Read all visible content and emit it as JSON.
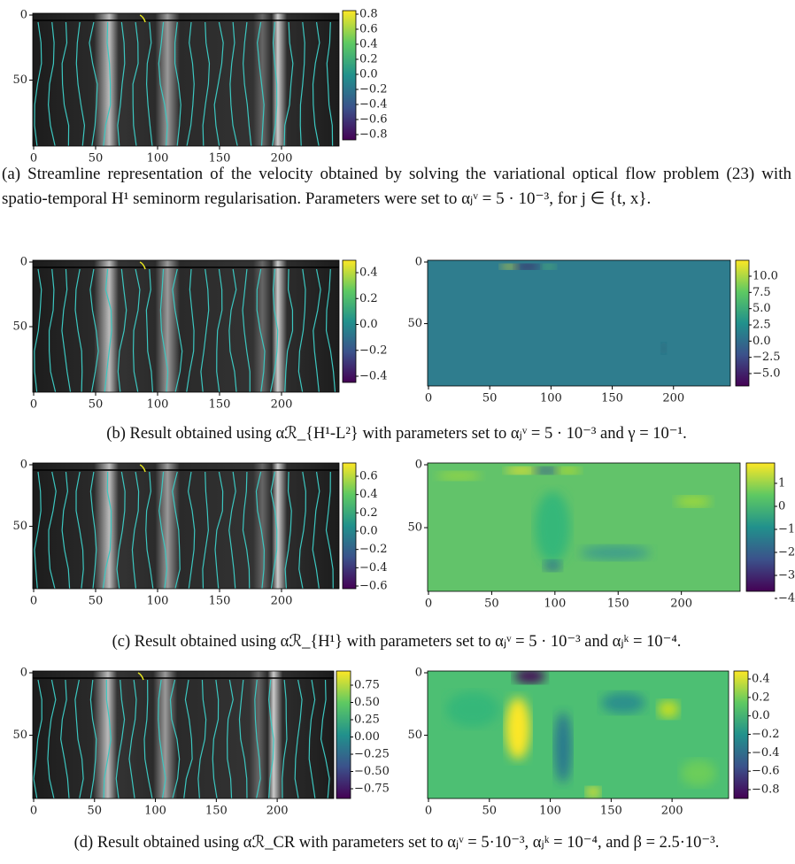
{
  "panels": [
    {
      "images": [
        {
          "y_ticks": [
            "0",
            "50"
          ],
          "x_ticks": [
            "0",
            "50",
            "100",
            "150",
            "200"
          ],
          "colorbar_ticks": [
            "0.8",
            "0.6",
            "0.4",
            "0.2",
            "0.0",
            "−0.2",
            "−0.4",
            "−0.6",
            "−0.8"
          ]
        }
      ],
      "caption": "(a) Streamline representation of the velocity obtained by solving the variational optical flow problem (23) with spatio-temporal H¹ seminorm regularisation. Parameters were set to αⱼᵛ = 5 · 10⁻³, for j ∈ {t, x}."
    },
    {
      "images": [
        {
          "y_ticks": [
            "0",
            "50"
          ],
          "x_ticks": [
            "0",
            "50",
            "100",
            "150",
            "200"
          ],
          "colorbar_ticks": [
            "0.4",
            "0.2",
            "0.0",
            "−0.2",
            "−0.4"
          ]
        },
        {
          "y_ticks": [
            "0",
            "50"
          ],
          "x_ticks": [
            "0",
            "50",
            "100",
            "150",
            "200"
          ],
          "colorbar_ticks": [
            "10.0",
            "7.5",
            "5.0",
            "2.5",
            "0.0",
            "−2.5",
            "−5.0"
          ]
        }
      ],
      "caption": "(b) Result obtained using αℛ_{H¹-L²} with parameters set to αⱼᵛ = 5 · 10⁻³ and γ = 10⁻¹."
    },
    {
      "images": [
        {
          "y_ticks": [
            "0",
            "50"
          ],
          "x_ticks": [
            "0",
            "50",
            "100",
            "150",
            "200"
          ],
          "colorbar_ticks": [
            "0.6",
            "0.4",
            "0.2",
            "0.0",
            "−0.2",
            "−0.4",
            "−0.6"
          ]
        },
        {
          "y_ticks": [
            "0",
            "50"
          ],
          "x_ticks": [
            "0",
            "50",
            "100",
            "150",
            "200"
          ],
          "colorbar_ticks": [
            "1",
            "0",
            "−1",
            "−2",
            "−3",
            "−4"
          ]
        }
      ],
      "caption": "(c) Result obtained using αℛ_{H¹} with parameters set to αⱼᵛ = 5 · 10⁻³ and αⱼᵏ = 10⁻⁴."
    },
    {
      "images": [
        {
          "y_ticks": [
            "0",
            "50"
          ],
          "x_ticks": [
            "0",
            "50",
            "100",
            "150",
            "200"
          ],
          "colorbar_ticks": [
            "0.75",
            "0.50",
            "0.25",
            "0.00",
            "−0.25",
            "−0.50",
            "−0.75"
          ]
        },
        {
          "y_ticks": [
            "0",
            "50"
          ],
          "x_ticks": [
            "0",
            "50",
            "100",
            "150",
            "200"
          ],
          "colorbar_ticks": [
            "0.4",
            "0.2",
            "0.0",
            "−0.2",
            "−0.4",
            "−0.6",
            "−0.8"
          ]
        }
      ],
      "caption": "(d) Result obtained using αℛ_CR with parameters set to αⱼᵛ = 5·10⁻³, αⱼᵏ = 10⁻⁴, and β = 2.5·10⁻³."
    }
  ]
}
